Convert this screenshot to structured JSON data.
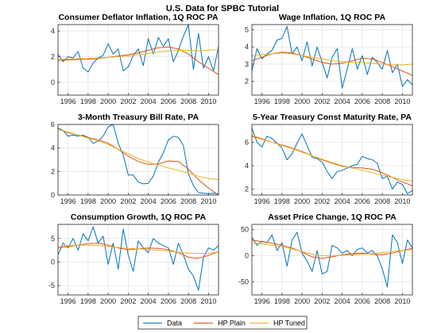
{
  "figure": {
    "title": "U.S. Data for SPBC Tutorial",
    "colors": {
      "data": "#0072BD",
      "hp_plain": "#D95319",
      "hp_tuned": "#EDB120",
      "grid": "#dddddd",
      "axis": "#262626"
    }
  },
  "legend": {
    "placement": "bottom-center",
    "entries": [
      "Data",
      "HP Plain",
      "HP Tuned"
    ]
  },
  "chart_data": [
    {
      "type": "line",
      "title": "Consumer Deflator Inflation, 1Q ROC PA",
      "xlim": [
        1995,
        2011
      ],
      "ylim": [
        -1,
        4.5
      ],
      "xticks": [
        1996,
        1998,
        2000,
        2002,
        2004,
        2006,
        2008,
        2010
      ],
      "yticks": [
        0,
        2,
        4
      ],
      "grid": true,
      "series": [
        {
          "name": "Data",
          "x": [
            1995,
            1995.5,
            1996,
            1996.5,
            1997,
            1997.5,
            1998,
            1998.5,
            1999,
            1999.5,
            2000,
            2000.5,
            2001,
            2001.5,
            2002,
            2002.5,
            2003,
            2003.5,
            2004,
            2004.5,
            2005,
            2005.5,
            2006,
            2006.5,
            2007,
            2007.5,
            2008,
            2008.5,
            2009,
            2009.5,
            2010,
            2010.5,
            2011
          ],
          "y": [
            2.2,
            1.6,
            2.0,
            1.9,
            2.4,
            1.1,
            0.8,
            1.5,
            1.9,
            2.1,
            3.0,
            2.2,
            2.6,
            0.9,
            1.2,
            2.1,
            2.6,
            1.3,
            3.4,
            2.2,
            3.5,
            2.8,
            3.4,
            1.6,
            2.5,
            3.6,
            4.5,
            1.0,
            3.8,
            1.1,
            2.0,
            0.9,
            2.8
          ]
        },
        {
          "name": "HP Plain",
          "x": [
            1995,
            1996,
            1997,
            1998,
            1999,
            2000,
            2001,
            2002,
            2003,
            2004,
            2005,
            2006,
            2007,
            2008,
            2009,
            2010,
            2011
          ],
          "y": [
            1.7,
            1.75,
            1.78,
            1.8,
            1.85,
            1.95,
            2.05,
            2.15,
            2.3,
            2.5,
            2.7,
            2.75,
            2.6,
            2.2,
            1.6,
            1.1,
            0.6
          ]
        },
        {
          "name": "HP Tuned",
          "x": [
            1995,
            1996,
            1997,
            1998,
            1999,
            2000,
            2001,
            2002,
            2003,
            2004,
            2005,
            2006,
            2007,
            2008,
            2009,
            2010,
            2011
          ],
          "y": [
            1.8,
            1.82,
            1.84,
            1.86,
            1.9,
            1.95,
            2.0,
            2.05,
            2.15,
            2.25,
            2.35,
            2.45,
            2.5,
            2.5,
            2.45,
            2.5,
            2.55
          ]
        }
      ]
    },
    {
      "type": "line",
      "title": "Wage Inflation, 1Q ROC PA",
      "xlim": [
        1995,
        2011
      ],
      "ylim": [
        1.2,
        5.3
      ],
      "xticks": [
        1996,
        1998,
        2000,
        2002,
        2004,
        2006,
        2008,
        2010
      ],
      "yticks": [
        2,
        3,
        4,
        5
      ],
      "grid": true,
      "series": [
        {
          "name": "Data",
          "x": [
            1995,
            1995.5,
            1996,
            1996.5,
            1997,
            1997.5,
            1998,
            1998.5,
            1999,
            1999.5,
            2000,
            2000.5,
            2001,
            2001.5,
            2002,
            2002.5,
            2003,
            2003.5,
            2004,
            2004.5,
            2005,
            2005.5,
            2006,
            2006.5,
            2007,
            2007.5,
            2008,
            2008.5,
            2009,
            2009.5,
            2010,
            2010.5,
            2011
          ],
          "y": [
            2.6,
            3.9,
            3.3,
            3.6,
            3.8,
            4.4,
            4.5,
            5.2,
            3.6,
            4.0,
            3.2,
            4.3,
            2.9,
            4.0,
            3.1,
            2.2,
            3.4,
            3.9,
            1.6,
            2.7,
            3.9,
            2.7,
            3.5,
            2.4,
            3.4,
            3.1,
            2.7,
            3.8,
            2.5,
            3.0,
            1.7,
            2.1,
            1.8
          ]
        },
        {
          "name": "HP Plain",
          "x": [
            1995,
            1996,
            1997,
            1998,
            1999,
            2000,
            2001,
            2002,
            2003,
            2004,
            2005,
            2006,
            2007,
            2008,
            2009,
            2010,
            2011
          ],
          "y": [
            3.2,
            3.4,
            3.6,
            3.7,
            3.65,
            3.5,
            3.3,
            3.1,
            3.0,
            3.05,
            3.2,
            3.35,
            3.3,
            3.1,
            2.85,
            2.6,
            2.35
          ]
        },
        {
          "name": "HP Tuned",
          "x": [
            1995,
            1996,
            1997,
            1998,
            1999,
            2000,
            2001,
            2002,
            2003,
            2004,
            2005,
            2006,
            2007,
            2008,
            2009,
            2010,
            2011
          ],
          "y": [
            3.5,
            3.55,
            3.6,
            3.65,
            3.6,
            3.5,
            3.4,
            3.3,
            3.2,
            3.15,
            3.1,
            3.1,
            3.05,
            3.0,
            2.95,
            2.95,
            3.0
          ]
        }
      ]
    },
    {
      "type": "line",
      "title": "3-Month Treasury Bill Rate, PA",
      "xlim": [
        1995,
        2011
      ],
      "ylim": [
        0,
        6
      ],
      "xticks": [
        1996,
        1998,
        2000,
        2002,
        2004,
        2006,
        2008,
        2010
      ],
      "yticks": [
        0,
        2,
        4,
        6
      ],
      "grid": true,
      "series": [
        {
          "name": "Data",
          "x": [
            1995,
            1995.5,
            1996,
            1996.5,
            1997,
            1997.5,
            1998,
            1998.5,
            1999,
            1999.5,
            2000,
            2000.5,
            2001,
            2001.5,
            2002,
            2002.5,
            2003,
            2003.5,
            2004,
            2004.5,
            2005,
            2005.5,
            2006,
            2006.5,
            2007,
            2007.5,
            2008,
            2008.5,
            2009,
            2009.5,
            2010,
            2010.5,
            2011
          ],
          "y": [
            5.7,
            5.5,
            5.0,
            5.1,
            5.0,
            5.1,
            4.9,
            4.4,
            4.6,
            5.0,
            5.8,
            6.0,
            4.4,
            3.4,
            1.7,
            1.7,
            1.1,
            0.95,
            1.0,
            1.6,
            2.8,
            3.6,
            4.7,
            5.0,
            4.9,
            4.2,
            1.8,
            0.8,
            0.2,
            0.15,
            0.12,
            0.15,
            0.1
          ]
        },
        {
          "name": "HP Plain",
          "x": [
            1995,
            1996,
            1997,
            1998,
            1999,
            2000,
            2001,
            2002,
            2003,
            2004,
            2005,
            2006,
            2007,
            2008,
            2009,
            2010,
            2011
          ],
          "y": [
            5.6,
            5.3,
            5.1,
            4.9,
            4.7,
            4.4,
            3.9,
            3.3,
            2.85,
            2.6,
            2.65,
            2.9,
            2.85,
            2.2,
            1.3,
            0.6,
            0.0
          ]
        },
        {
          "name": "HP Tuned",
          "x": [
            1995,
            1996,
            1997,
            1998,
            1999,
            2000,
            2001,
            2002,
            2003,
            2004,
            2005,
            2006,
            2007,
            2008,
            2009,
            2010,
            2011
          ],
          "y": [
            5.6,
            5.35,
            5.1,
            4.85,
            4.6,
            4.3,
            3.9,
            3.5,
            3.1,
            2.8,
            2.55,
            2.3,
            2.1,
            1.85,
            1.6,
            1.4,
            1.3
          ]
        }
      ]
    },
    {
      "type": "line",
      "title": "5-Year Treasury Const Maturity Rate, PA",
      "xlim": [
        1995,
        2011
      ],
      "ylim": [
        1.5,
        7.5
      ],
      "xticks": [
        1996,
        1998,
        2000,
        2002,
        2004,
        2006,
        2008,
        2010
      ],
      "yticks": [
        2,
        4,
        6
      ],
      "grid": true,
      "series": [
        {
          "name": "Data",
          "x": [
            1995,
            1995.5,
            1996,
            1996.5,
            1997,
            1997.5,
            1998,
            1998.5,
            1999,
            1999.5,
            2000,
            2000.5,
            2001,
            2001.5,
            2002,
            2002.5,
            2003,
            2003.5,
            2004,
            2004.5,
            2005,
            2005.5,
            2006,
            2006.5,
            2007,
            2007.5,
            2008,
            2008.5,
            2009,
            2009.5,
            2010,
            2010.5,
            2011
          ],
          "y": [
            7.2,
            6.0,
            5.6,
            6.5,
            6.3,
            5.9,
            5.5,
            4.5,
            5.0,
            5.9,
            6.7,
            5.7,
            4.7,
            4.6,
            4.3,
            3.5,
            2.9,
            3.5,
            3.6,
            3.8,
            4.0,
            4.1,
            4.8,
            4.6,
            4.5,
            4.2,
            2.9,
            3.1,
            2.0,
            2.6,
            2.4,
            1.6,
            1.9
          ]
        },
        {
          "name": "HP Plain",
          "x": [
            1995,
            1996,
            1997,
            1998,
            1999,
            2000,
            2001,
            2002,
            2003,
            2004,
            2005,
            2006,
            2007,
            2008,
            2009,
            2010,
            2011
          ],
          "y": [
            6.5,
            6.25,
            6.0,
            5.75,
            5.5,
            5.2,
            4.85,
            4.5,
            4.2,
            3.95,
            3.85,
            3.8,
            3.7,
            3.4,
            3.0,
            2.6,
            2.3
          ]
        },
        {
          "name": "HP Tuned",
          "x": [
            1995,
            1996,
            1997,
            1998,
            1999,
            2000,
            2001,
            2002,
            2003,
            2004,
            2005,
            2006,
            2007,
            2008,
            2009,
            2010,
            2011
          ],
          "y": [
            6.6,
            6.3,
            6.0,
            5.7,
            5.45,
            5.15,
            4.85,
            4.55,
            4.25,
            4.0,
            3.8,
            3.6,
            3.4,
            3.2,
            3.0,
            2.8,
            2.7
          ]
        }
      ]
    },
    {
      "type": "line",
      "title": "Consumption Growth, 1Q ROC PA",
      "xlim": [
        1995,
        2011
      ],
      "ylim": [
        -7,
        8
      ],
      "xticks": [
        1996,
        1998,
        2000,
        2002,
        2004,
        2006,
        2008,
        2010
      ],
      "yticks": [
        -5,
        0,
        5
      ],
      "grid": true,
      "series": [
        {
          "name": "Data",
          "x": [
            1995,
            1995.5,
            1996,
            1996.5,
            1997,
            1997.5,
            1998,
            1998.5,
            1999,
            1999.5,
            2000,
            2000.5,
            2001,
            2001.5,
            2002,
            2002.5,
            2003,
            2003.5,
            2004,
            2004.5,
            2005,
            2005.5,
            2006,
            2006.5,
            2007,
            2007.5,
            2008,
            2008.5,
            2009,
            2009.5,
            2010,
            2010.5,
            2011
          ],
          "y": [
            1.5,
            4.0,
            3.0,
            5.0,
            2.5,
            6.0,
            4.5,
            7.5,
            4.0,
            5.5,
            -0.5,
            4.0,
            -1.5,
            7.0,
            1.5,
            -2.0,
            4.5,
            3.0,
            2.0,
            5.0,
            4.0,
            3.5,
            3.0,
            -0.5,
            4.0,
            1.5,
            -1.5,
            -3.0,
            -6.0,
            1.0,
            3.0,
            2.5,
            3.5
          ]
        },
        {
          "name": "HP Plain",
          "x": [
            1995,
            1996,
            1997,
            1998,
            1999,
            2000,
            2001,
            2002,
            2003,
            2004,
            2005,
            2006,
            2007,
            2008,
            2009,
            2010,
            2011
          ],
          "y": [
            3.0,
            3.3,
            3.6,
            3.9,
            4.0,
            3.6,
            3.0,
            2.6,
            2.8,
            3.0,
            2.9,
            2.6,
            2.0,
            1.0,
            0.8,
            1.4,
            2.2
          ]
        },
        {
          "name": "HP Tuned",
          "x": [
            1995,
            1996,
            1997,
            1998,
            1999,
            2000,
            2001,
            2002,
            2003,
            2004,
            2005,
            2006,
            2007,
            2008,
            2009,
            2010,
            2011
          ],
          "y": [
            3.3,
            3.5,
            3.6,
            3.6,
            3.5,
            3.3,
            3.1,
            2.9,
            2.8,
            2.7,
            2.5,
            2.3,
            2.1,
            1.9,
            1.8,
            1.9,
            2.1
          ]
        }
      ]
    },
    {
      "type": "line",
      "title": "Asset Price Change, 1Q ROC PA",
      "xlim": [
        1995,
        2011
      ],
      "ylim": [
        -75,
        60
      ],
      "xticks": [
        1996,
        1998,
        2000,
        2002,
        2004,
        2006,
        2008,
        2010
      ],
      "yticks": [
        -50,
        0,
        50
      ],
      "grid": true,
      "series": [
        {
          "name": "Data",
          "x": [
            1995,
            1995.5,
            1996,
            1996.5,
            1997,
            1997.5,
            1998,
            1998.5,
            1999,
            1999.5,
            2000,
            2000.5,
            2001,
            2001.5,
            2002,
            2002.5,
            2003,
            2003.5,
            2004,
            2004.5,
            2005,
            2005.5,
            2006,
            2006.5,
            2007,
            2007.5,
            2008,
            2008.5,
            2009,
            2009.5,
            2010,
            2010.5,
            2011
          ],
          "y": [
            35,
            20,
            28,
            25,
            40,
            10,
            25,
            -20,
            30,
            45,
            5,
            -10,
            -30,
            10,
            -35,
            -30,
            20,
            15,
            5,
            10,
            0,
            12,
            15,
            5,
            10,
            0,
            -25,
            -60,
            40,
            25,
            -15,
            30,
            15
          ]
        },
        {
          "name": "HP Plain",
          "x": [
            1995,
            1996,
            1997,
            1998,
            1999,
            2000,
            2001,
            2002,
            2003,
            2004,
            2005,
            2006,
            2007,
            2008,
            2009,
            2010,
            2011
          ],
          "y": [
            30,
            27,
            24,
            20,
            15,
            7,
            -2,
            -5,
            -2,
            2,
            4,
            5,
            3,
            2,
            5,
            10,
            14
          ]
        },
        {
          "name": "HP Tuned",
          "x": [
            1995,
            1996,
            1997,
            1998,
            1999,
            2000,
            2001,
            2002,
            2003,
            2004,
            2005,
            2006,
            2007,
            2008,
            2009,
            2010,
            2011
          ],
          "y": [
            25,
            23,
            20,
            17,
            13,
            8,
            3,
            0,
            0,
            1,
            2,
            3,
            4,
            6,
            8,
            10,
            12
          ]
        }
      ]
    }
  ]
}
